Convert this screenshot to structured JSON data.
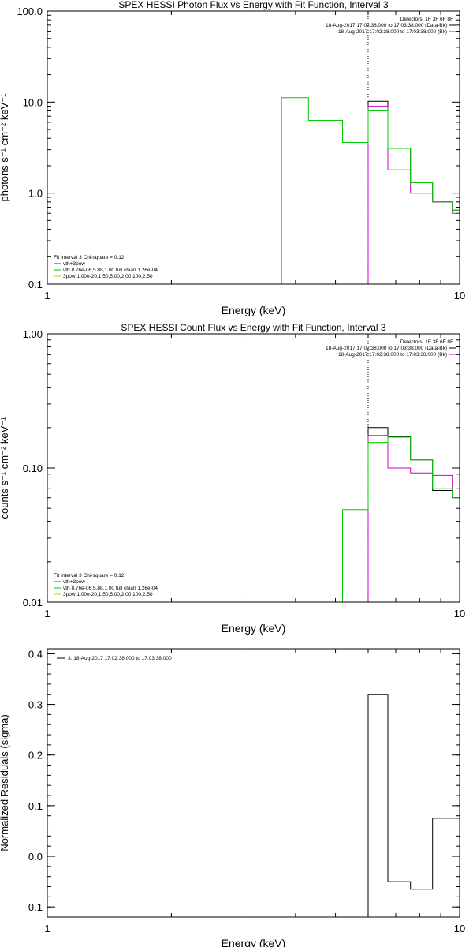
{
  "chart_data": [
    {
      "type": "line",
      "title": "SPEX HESSI Photon Flux vs Energy with Fit Function, Interval 3",
      "xlabel": "Energy (keV)",
      "ylabel": "photons s⁻¹ cm⁻² keV⁻¹",
      "x_scale": "log",
      "y_scale": "log",
      "xlim": [
        1,
        10
      ],
      "ylim": [
        0.1,
        100
      ],
      "x_ticks": [
        "1",
        "10"
      ],
      "y_ticks": [
        "0.1",
        "1.0",
        "10.0",
        "100.0"
      ],
      "vline_x": 6.0,
      "legend_top_right": [
        {
          "text": "Detectors: 1F 3F 6F 8F",
          "color": null
        },
        {
          "text": "18-Aug-2017 17:02:38.000 to 17:03:38.000 (Data-Bk)",
          "color": "#000000"
        },
        {
          "text": "18-Aug-2017 17:02:38.000 to 17:03:38.000 (Bk)",
          "color": "#cc00cc"
        }
      ],
      "legend_bottom_left": [
        {
          "text": "Fit Interval 3   Chi-square = 0.12",
          "color": null
        },
        {
          "text": "vth+3pow",
          "color": "#cc0000"
        },
        {
          "text": "vth 8.76e-06,5.88,1.00  full chian 1.26e-04",
          "color": "#00cc00"
        },
        {
          "text": "3pow 1.00e-20,1.50,5.00,2.00,100,2.50",
          "color": "#cccc00"
        }
      ],
      "series": [
        {
          "name": "Data-Bk",
          "color": "#000000",
          "edges": [
            6.0,
            6.7,
            7.6,
            8.6,
            9.6,
            10.0
          ],
          "values": [
            10.2,
            3.1,
            1.3,
            0.8,
            0.65
          ]
        },
        {
          "name": "Bk",
          "color": "#cc00cc",
          "edges": [
            6.0,
            6.7,
            7.6,
            8.6,
            9.6,
            10.0
          ],
          "values": [
            9.0,
            1.8,
            1.0,
            0.8,
            0.6
          ]
        },
        {
          "name": "vth",
          "color": "#00cc00",
          "edges": [
            3.7,
            4.3,
            5.2,
            6.0,
            6.7,
            7.6,
            8.6,
            9.6,
            10.0
          ],
          "values": [
            11.2,
            6.3,
            3.6,
            8.0,
            3.1,
            1.3,
            0.8,
            0.65
          ]
        }
      ]
    },
    {
      "type": "line",
      "title": "SPEX HESSI Count Flux vs Energy with Fit Function, Interval 3",
      "xlabel": "Energy (keV)",
      "ylabel": "counts s⁻¹ cm⁻² keV⁻¹",
      "x_scale": "log",
      "y_scale": "log",
      "xlim": [
        1,
        10
      ],
      "ylim": [
        0.01,
        1
      ],
      "x_ticks": [
        "1",
        "10"
      ],
      "y_ticks": [
        "0.01",
        "0.10",
        "1.00"
      ],
      "vline_x": 6.0,
      "legend_top_right": [
        {
          "text": "Detectors: 1F 3F 6F 8F",
          "color": null
        },
        {
          "text": "18-Aug-2017 17:02:38.000 to 17:03:38.000 (Data-Bk)",
          "color": "#000000"
        },
        {
          "text": "18-Aug-2017 17:02:38.000 to 17:03:38.000 (Bk)",
          "color": "#cc00cc"
        }
      ],
      "legend_bottom_left": [
        {
          "text": "Fit Interval 3   Chi-square = 0.12",
          "color": null
        },
        {
          "text": "vth+3pow",
          "color": "#cc0000"
        },
        {
          "text": "vth 8.76e-06,5.88,1.00  full chian 1.26e-04",
          "color": "#00cc00"
        },
        {
          "text": "3pow 1.00e-20,1.50,5.00,2.00,100,2.50",
          "color": "#cccc00"
        }
      ],
      "series": [
        {
          "name": "Data-Bk",
          "color": "#000000",
          "edges": [
            6.0,
            6.7,
            7.6,
            8.6,
            9.6,
            10.0
          ],
          "values": [
            0.2,
            0.17,
            0.115,
            0.068,
            0.06
          ]
        },
        {
          "name": "Bk",
          "color": "#cc00cc",
          "edges": [
            6.0,
            6.7,
            7.6,
            8.6,
            9.6,
            10.0
          ],
          "values": [
            0.175,
            0.1,
            0.092,
            0.088,
            0.06
          ]
        },
        {
          "name": "vth",
          "color": "#00cc00",
          "edges": [
            5.2,
            6.0,
            6.7,
            7.6,
            8.6,
            9.6,
            10.0
          ],
          "values": [
            0.049,
            0.155,
            0.172,
            0.115,
            0.07,
            0.06
          ]
        }
      ]
    },
    {
      "type": "line",
      "title": "",
      "xlabel": "Energy (keV)",
      "ylabel": "Normalized Residuals (sigma)",
      "x_scale": "log",
      "y_scale": "linear",
      "xlim": [
        1,
        10
      ],
      "ylim": [
        -0.12,
        0.41
      ],
      "x_ticks": [
        "1",
        "10"
      ],
      "y_ticks": [
        "-0.1",
        "0.0",
        "0.1",
        "0.2",
        "0.3",
        "0.4"
      ],
      "legend_top_left": [
        {
          "text": "3. 18-Aug-2017 17:02:38.000 to 17:03:38.000",
          "color": "#000000"
        }
      ],
      "series": [
        {
          "name": "3",
          "color": "#000000",
          "edges": [
            6.0,
            6.7,
            7.6,
            8.6,
            9.6,
            10.0
          ],
          "values": [
            0.32,
            -0.05,
            -0.065,
            0.075,
            0.075
          ]
        }
      ]
    }
  ]
}
